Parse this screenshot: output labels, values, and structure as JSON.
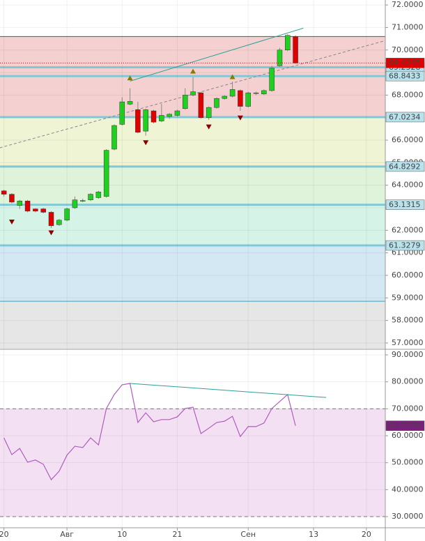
{
  "chart_data": [
    {
      "type": "candlestick",
      "open": [
        63.75,
        63.6,
        63.1,
        63.3,
        62.95,
        62.95,
        62.8,
        62.25,
        62.45,
        63.0,
        63.3,
        63.35,
        63.45,
        63.5,
        65.6,
        66.7,
        67.6,
        67.35,
        66.4,
        67.3,
        66.85,
        67.05,
        67.1,
        67.4,
        68.0,
        68.1,
        67.0,
        67.45,
        67.85,
        67.95,
        68.2,
        67.5,
        68.08,
        68.05,
        68.2,
        69.3,
        70.0,
        70.6
      ],
      "high": [
        63.8,
        63.65,
        63.35,
        63.35,
        62.98,
        63.0,
        62.85,
        62.5,
        63.0,
        63.5,
        63.4,
        63.65,
        63.75,
        65.6,
        66.7,
        67.9,
        68.3,
        67.7,
        67.4,
        67.35,
        67.6,
        67.2,
        67.35,
        68.3,
        68.8,
        68.15,
        67.5,
        67.9,
        68.0,
        68.6,
        68.25,
        68.15,
        68.15,
        68.25,
        69.3,
        70.1,
        70.7,
        70.65
      ],
      "low": [
        63.5,
        63.2,
        62.95,
        62.8,
        62.8,
        62.75,
        62.1,
        62.2,
        62.4,
        62.95,
        63.25,
        63.3,
        63.4,
        63.45,
        65.55,
        66.65,
        67.55,
        66.3,
        66.2,
        66.75,
        66.8,
        66.95,
        67.05,
        67.35,
        67.95,
        66.95,
        66.9,
        67.4,
        67.8,
        67.9,
        67.3,
        67.45,
        68.0,
        68.0,
        68.15,
        69.25,
        69.95,
        69.4
      ],
      "close": [
        63.6,
        63.25,
        63.3,
        62.85,
        62.85,
        62.8,
        62.2,
        62.45,
        62.95,
        63.35,
        63.32,
        63.6,
        63.7,
        65.55,
        66.65,
        67.7,
        67.72,
        66.35,
        67.35,
        66.8,
        67.1,
        67.15,
        67.3,
        68.0,
        68.15,
        67.0,
        67.45,
        67.85,
        67.95,
        68.25,
        67.5,
        68.1,
        68.1,
        68.2,
        69.2,
        70.0,
        70.65,
        69.4245
      ],
      "up_color": "#1ed11e",
      "down_color": "#e00000",
      "xlim": [
        -0.5,
        48.4
      ],
      "ylim": [
        56.75,
        72.22
      ],
      "yticks": [
        {
          "value": 57,
          "label": "57.0000"
        },
        {
          "value": 58,
          "label": "58.0000"
        },
        {
          "value": 59,
          "label": "59.0000"
        },
        {
          "value": 60,
          "label": "60.0000"
        },
        {
          "value": 61,
          "label": "61.0000"
        },
        {
          "value": 62,
          "label": "62.0000"
        },
        {
          "value": 63,
          "label": "63.0000"
        },
        {
          "value": 64,
          "label": "64.0000"
        },
        {
          "value": 65,
          "label": "65.0000"
        },
        {
          "value": 66,
          "label": "66.0000"
        },
        {
          "value": 67,
          "label": "67.0000"
        },
        {
          "value": 68,
          "label": "68.0000"
        },
        {
          "value": 69,
          "label": "69.0000"
        },
        {
          "value": 70,
          "label": "70.0000"
        },
        {
          "value": 71,
          "label": "71.0000"
        },
        {
          "value": 72,
          "label": "72.0000"
        }
      ],
      "zones": [
        {
          "from": 70.6,
          "to": 67.0234,
          "color": "#f4d0d0"
        },
        {
          "from": 67.0234,
          "to": 64.8292,
          "color": "#eef4d4"
        },
        {
          "from": 64.8292,
          "to": 63.1315,
          "color": "#dff2da"
        },
        {
          "from": 63.1315,
          "to": 61.3279,
          "color": "#d6f3e8"
        },
        {
          "from": 61.3279,
          "to": 58.85,
          "color": "#d4e8f4"
        },
        {
          "from": 58.85,
          "to": 56.75,
          "color": "#e6e6e6"
        }
      ],
      "levels": [
        69.2328,
        68.8433,
        67.0234,
        64.8292,
        63.1315,
        61.3279
      ],
      "level_color": "#7fc8d8",
      "price_color": "#e00000",
      "trend_lines": [
        {
          "x": [
            16,
            38
          ],
          "y": [
            68.62,
            70.97
          ],
          "color": "#2aa198",
          "dashed": false
        },
        {
          "x": [
            -0.53,
            48.41
          ],
          "y": [
            65.66,
            70.42
          ],
          "color": "#888888",
          "dashed": true
        }
      ],
      "fractals_up": {
        "color": "#8a7a00",
        "x": [
          16,
          24,
          29
        ],
        "y": [
          68.75,
          69.05,
          68.8
        ]
      },
      "fractals_down": {
        "color": "#8b0000",
        "x": [
          1,
          6,
          18,
          26,
          30
        ],
        "y": [
          62.38,
          61.9,
          65.9,
          66.6,
          67.0
        ]
      }
    },
    {
      "type": "line",
      "values": [
        59.2,
        53.0,
        55.3,
        50.2,
        51.0,
        49.4,
        43.7,
        46.8,
        52.8,
        56.1,
        55.6,
        59.2,
        56.6,
        70.1,
        75.3,
        78.9,
        79.4,
        64.9,
        68.5,
        65.2,
        66.0,
        66.0,
        67.0,
        70.1,
        70.6,
        60.8,
        62.8,
        64.9,
        65.4,
        67.2,
        59.7,
        63.4,
        63.4,
        64.7,
        70.1,
        72.7,
        75.3,
        63.7128
      ],
      "color": "#b05bc0",
      "band": [
        30,
        70
      ],
      "band_color": "#f3e1f3",
      "xlim": [
        -0.5,
        48.4
      ],
      "ylim": [
        25.87,
        91.55
      ],
      "yticks": [
        {
          "value": 30,
          "label": "30.0000"
        },
        {
          "value": 40,
          "label": "40.0000"
        },
        {
          "value": 50,
          "label": "50.0000"
        },
        {
          "value": 60,
          "label": "60.0000"
        },
        {
          "value": 70,
          "label": "70.0000"
        },
        {
          "value": 80,
          "label": "80.0000"
        },
        {
          "value": 90,
          "label": "90.0000"
        }
      ],
      "trend_lines": [
        {
          "x": [
            16,
            40.9
          ],
          "y": [
            79.4,
            74.2
          ],
          "color": "#2aa198",
          "dashed": false
        }
      ],
      "xticks": [
        {
          "value": 0,
          "label": "20"
        },
        {
          "value": 8,
          "label": "Авг"
        },
        {
          "value": 15,
          "label": "10"
        },
        {
          "value": 22,
          "label": "21"
        },
        {
          "value": 31,
          "label": "Сен"
        },
        {
          "value": 39.3,
          "label": "13"
        },
        {
          "value": 46,
          "label": "20"
        }
      ]
    }
  ]
}
